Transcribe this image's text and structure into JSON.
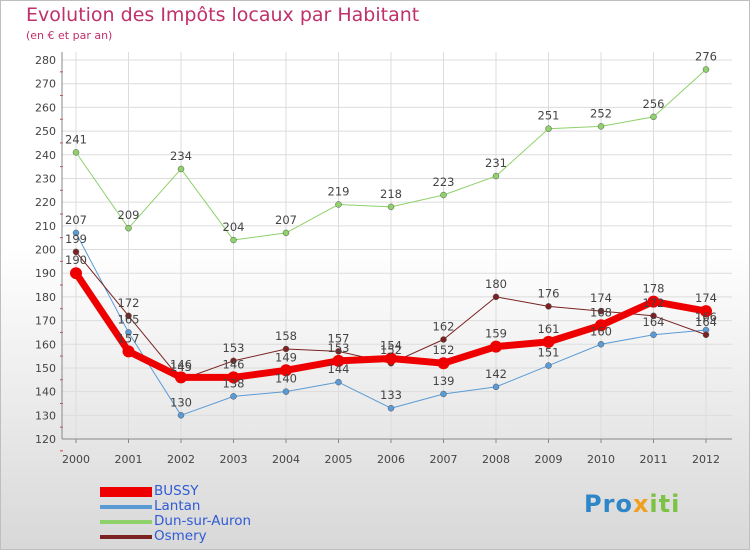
{
  "header": {
    "title": "Evolution des Impôts locaux par Habitant",
    "subtitle": "(en € et par an)"
  },
  "logo": {
    "text": "Proxiti",
    "letters": [
      {
        "ch": "P",
        "color": "#2e86c8"
      },
      {
        "ch": "r",
        "color": "#2e86c8"
      },
      {
        "ch": "o",
        "color": "#2e86c8"
      },
      {
        "ch": "x",
        "color": "#f0a020"
      },
      {
        "ch": "i",
        "color": "#7cc244"
      },
      {
        "ch": "t",
        "color": "#7cc244"
      },
      {
        "ch": "i",
        "color": "#7cc244"
      }
    ]
  },
  "chart_data": {
    "type": "line",
    "title": "Evolution des Impôts locaux par Habitant",
    "subtitle": "(en € et par an)",
    "x": [
      "2000",
      "2001",
      "2002",
      "2003",
      "2004",
      "2005",
      "2006",
      "2007",
      "2008",
      "2009",
      "2010",
      "2011",
      "2012"
    ],
    "ylim": [
      120,
      280
    ],
    "yticks": [
      120,
      130,
      140,
      150,
      160,
      170,
      180,
      190,
      200,
      210,
      220,
      230,
      240,
      250,
      260,
      270,
      280
    ],
    "grid": true,
    "legend_position": "bottom-left",
    "series": [
      {
        "name": "BUSSY",
        "color": "#ee0000",
        "width": 7,
        "values": [
          190,
          157,
          146,
          146,
          149,
          153,
          154,
          152,
          159,
          161,
          168,
          178,
          174
        ]
      },
      {
        "name": "Lantan",
        "color": "#5b9bd5",
        "width": 1,
        "values": [
          207,
          165,
          130,
          138,
          140,
          144,
          133,
          139,
          142,
          151,
          160,
          164,
          166
        ]
      },
      {
        "name": "Dun-sur-Auron",
        "color": "#8fd16b",
        "width": 1,
        "values": [
          241,
          209,
          234,
          204,
          207,
          219,
          218,
          223,
          231,
          251,
          252,
          256,
          276
        ]
      },
      {
        "name": "Osmery",
        "color": "#7b2222",
        "width": 1,
        "values": [
          199,
          172,
          145,
          153,
          158,
          157,
          152,
          162,
          180,
          176,
          174,
          172,
          164
        ]
      }
    ]
  }
}
